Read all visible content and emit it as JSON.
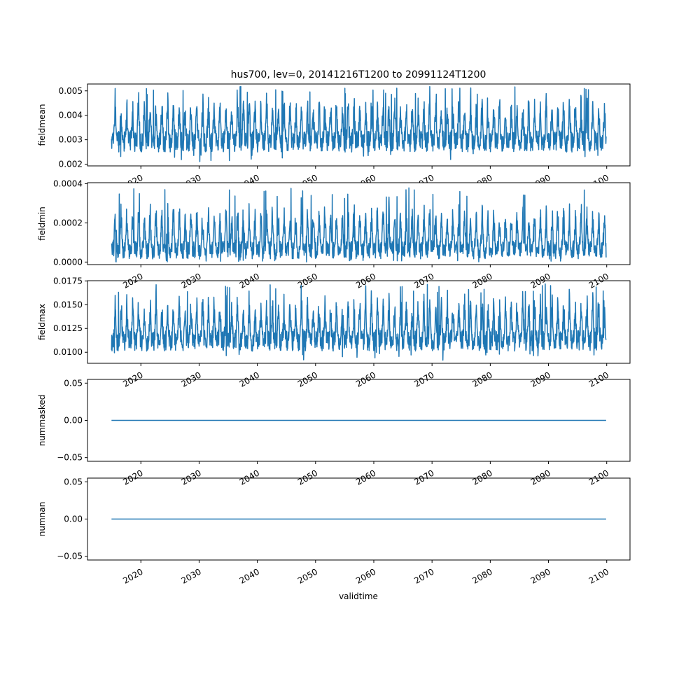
{
  "chart_data": {
    "type": "line",
    "title": "hus700, lev=0, 20141216T1200 to 20991124T1200",
    "xlabel": "validtime",
    "series_color": "#1f77b4",
    "x_ticks": [
      "2020",
      "2030",
      "2040",
      "2050",
      "2060",
      "2070",
      "2080",
      "2090",
      "2100"
    ],
    "x_range": [
      "2014-12-16",
      "2099-11-24"
    ],
    "xlim": [
      "2010-11-01",
      "2103-12-31"
    ],
    "subplots": [
      {
        "ylabel": "fieldmean",
        "ylim": [
          0.00193,
          0.00528
        ],
        "yticks": [
          "0.002",
          "0.003",
          "0.004",
          "0.005"
        ],
        "ytick_values": [
          0.002,
          0.003,
          0.004,
          0.005
        ],
        "baseline": 0.00292,
        "trough": 0.00245,
        "peak": 0.0043,
        "max": 0.0052,
        "min": 0.0021
      },
      {
        "ylabel": "fieldmin",
        "ylim": [
          -1.3e-05,
          0.000405
        ],
        "yticks": [
          "0.0000",
          "0.0002",
          "0.0004"
        ],
        "ytick_values": [
          0.0,
          0.0002,
          0.0004
        ],
        "baseline": 6e-05,
        "trough": 1e-05,
        "peak": 0.00024,
        "max": 0.00038,
        "min": 0.0
      },
      {
        "ylabel": "fieldmax",
        "ylim": [
          0.00884,
          0.01752
        ],
        "yticks": [
          "0.0100",
          "0.0125",
          "0.0150",
          "0.0175"
        ],
        "ytick_values": [
          0.01,
          0.0125,
          0.015,
          0.0175
        ],
        "baseline": 0.0112,
        "trough": 0.01,
        "peak": 0.0148,
        "max": 0.0172,
        "min": 0.0091
      },
      {
        "ylabel": "nummasked",
        "ylim": [
          -0.055,
          0.055
        ],
        "yticks": [
          "−0.05",
          "0.00",
          "0.05"
        ],
        "ytick_values": [
          -0.05,
          0.0,
          0.05
        ],
        "constant": 0.0
      },
      {
        "ylabel": "numnan",
        "ylim": [
          -0.055,
          0.055
        ],
        "yticks": [
          "−0.05",
          "0.00",
          "0.05"
        ],
        "ytick_values": [
          -0.05,
          0.0,
          0.05
        ],
        "constant": 0.0
      }
    ]
  }
}
